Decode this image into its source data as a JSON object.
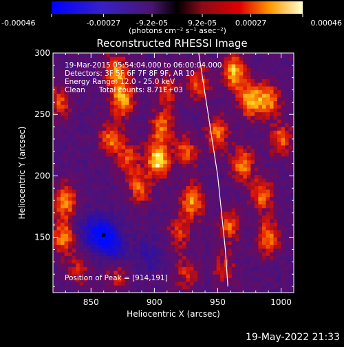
{
  "chart_data": {
    "type": "heatmap",
    "title": "Reconstructed RHESSI Image",
    "xlabel": "Heliocentric X (arcsec)",
    "ylabel": "Heliocentric Y (arcsec)",
    "xlim": [
      820,
      1010
    ],
    "ylim": [
      105,
      300
    ],
    "xticks": [
      850,
      900,
      950,
      1000
    ],
    "yticks": [
      150,
      200,
      250,
      300
    ],
    "colorbar": {
      "unit_label": "(photons cm⁻² s⁻¹ asec⁻²)",
      "range": [
        -0.00046,
        0.00046
      ],
      "tick_labels": [
        "-0.00046",
        "-0.00027",
        "-9.2e-05",
        "9.2e-05",
        "0.00027",
        "0.00046"
      ],
      "tick_values": [
        -0.00046,
        -0.00027,
        -9.2e-05,
        9.2e-05,
        0.00027,
        0.00046
      ]
    },
    "annotations": [
      "19-Mar-2015 05:54:04.000 to 06:00:04.000",
      "Detectors: 3F 5F 6F 7F 8F 9F, AR 10",
      "Energy Range: 12.0 - 25.0 keV",
      "Clean      Total counts: 8.71E+03"
    ],
    "peak_label": "Position of Peak = [914,191]",
    "peak": [
      914,
      191
    ],
    "limb_x": [
      935,
      938,
      941,
      944,
      947,
      950,
      953,
      956,
      958
    ],
    "limb_y": [
      300,
      280,
      260,
      240,
      220,
      200,
      170,
      140,
      110
    ],
    "hotspots": [
      {
        "x": 903,
        "y": 213,
        "v": 1.0
      },
      {
        "x": 906,
        "y": 240,
        "v": 0.65
      },
      {
        "x": 910,
        "y": 270,
        "v": 0.45
      },
      {
        "x": 875,
        "y": 262,
        "v": 0.8
      },
      {
        "x": 870,
        "y": 285,
        "v": 0.75
      },
      {
        "x": 865,
        "y": 230,
        "v": 0.65
      },
      {
        "x": 880,
        "y": 215,
        "v": 0.55
      },
      {
        "x": 888,
        "y": 190,
        "v": 0.6
      },
      {
        "x": 930,
        "y": 180,
        "v": 0.75
      },
      {
        "x": 925,
        "y": 220,
        "v": 0.6
      },
      {
        "x": 920,
        "y": 155,
        "v": 0.5
      },
      {
        "x": 925,
        "y": 122,
        "v": 0.45
      },
      {
        "x": 950,
        "y": 235,
        "v": 0.7
      },
      {
        "x": 963,
        "y": 285,
        "v": 0.85
      },
      {
        "x": 975,
        "y": 262,
        "v": 0.85
      },
      {
        "x": 990,
        "y": 262,
        "v": 0.75
      },
      {
        "x": 970,
        "y": 210,
        "v": 0.7
      },
      {
        "x": 960,
        "y": 160,
        "v": 0.6
      },
      {
        "x": 985,
        "y": 185,
        "v": 0.65
      },
      {
        "x": 990,
        "y": 150,
        "v": 0.7
      },
      {
        "x": 1000,
        "y": 230,
        "v": 0.6
      },
      {
        "x": 830,
        "y": 180,
        "v": 0.75
      },
      {
        "x": 828,
        "y": 150,
        "v": 0.7
      },
      {
        "x": 825,
        "y": 260,
        "v": 0.55
      },
      {
        "x": 840,
        "y": 125,
        "v": 0.45
      },
      {
        "x": 870,
        "y": 120,
        "v": 0.45
      },
      {
        "x": 935,
        "y": 275,
        "v": 0.55
      },
      {
        "x": 955,
        "y": 125,
        "v": 0.45
      },
      {
        "x": 860,
        "y": 152,
        "v": -1.0
      },
      {
        "x": 870,
        "y": 140,
        "v": -0.5
      },
      {
        "x": 848,
        "y": 155,
        "v": -0.45
      },
      {
        "x": 895,
        "y": 135,
        "v": -0.3
      }
    ]
  },
  "footer": {
    "timestamp": "19-May-2022 21:33"
  }
}
